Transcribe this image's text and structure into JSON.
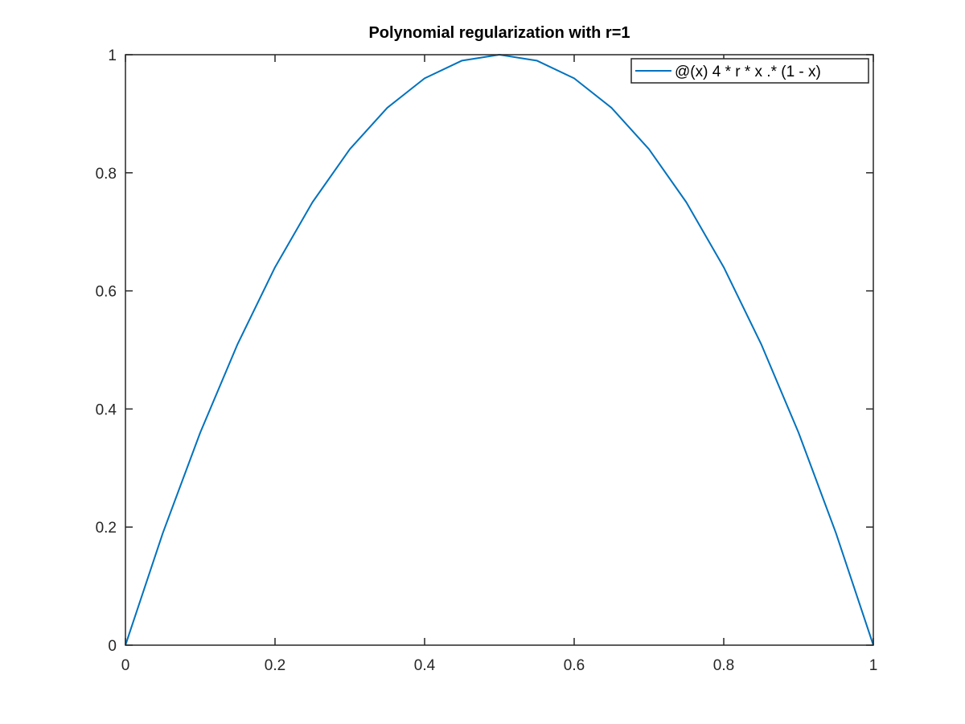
{
  "chart_data": {
    "type": "line",
    "title": "Polynomial regularization with r=1",
    "xlabel": "",
    "ylabel": "",
    "xlim": [
      0,
      1
    ],
    "ylim": [
      0,
      1
    ],
    "x_ticks": [
      0,
      0.2,
      0.4,
      0.6,
      0.8,
      1
    ],
    "y_ticks": [
      0,
      0.2,
      0.4,
      0.6,
      0.8,
      1
    ],
    "x_tick_labels": [
      "0",
      "0.2",
      "0.4",
      "0.6",
      "0.8",
      "1"
    ],
    "y_tick_labels": [
      "0",
      "0.2",
      "0.4",
      "0.6",
      "0.8",
      "1"
    ],
    "grid": false,
    "legend": "top-right",
    "series": [
      {
        "name": "@(x) 4 * r * x .* (1 - x)",
        "color": "#0072bd",
        "x": [
          0,
          0.05,
          0.1,
          0.15,
          0.2,
          0.25,
          0.3,
          0.35,
          0.4,
          0.45,
          0.5,
          0.55,
          0.6,
          0.65,
          0.7,
          0.75,
          0.8,
          0.85,
          0.9,
          0.95,
          1
        ],
        "y": [
          0,
          0.19,
          0.36,
          0.51,
          0.64,
          0.75,
          0.84,
          0.91,
          0.96,
          0.99,
          1,
          0.99,
          0.96,
          0.91,
          0.84,
          0.75,
          0.64,
          0.51,
          0.36,
          0.19,
          0
        ]
      }
    ]
  }
}
